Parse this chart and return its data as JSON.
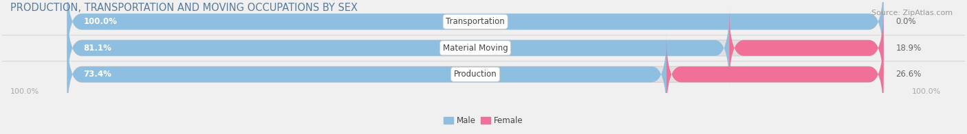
{
  "title": "PRODUCTION, TRANSPORTATION AND MOVING OCCUPATIONS BY SEX",
  "source": "Source: ZipAtlas.com",
  "categories": [
    "Transportation",
    "Material Moving",
    "Production"
  ],
  "male_values": [
    100.0,
    81.1,
    73.4
  ],
  "female_values": [
    0.0,
    18.9,
    26.6
  ],
  "male_color": "#8fbfe0",
  "female_color": "#f07098",
  "bar_bg_color": "#e0e0e0",
  "bar_bg_edge": "#d0d0d0",
  "male_label": "Male",
  "female_label": "Female",
  "title_fontsize": 10.5,
  "source_fontsize": 8,
  "label_fontsize": 8.5,
  "bar_label_fontsize": 8.5,
  "tick_fontsize": 8,
  "bar_height": 0.6,
  "x_left_label": "100.0%",
  "x_right_label": "100.0%",
  "figsize": [
    14.06,
    1.96
  ],
  "dpi": 100,
  "bg_color": "#f0f0f0",
  "title_color": "#5a7a9a",
  "source_color": "#999999",
  "tick_color": "#aaaaaa",
  "cat_label_color": "#444444"
}
